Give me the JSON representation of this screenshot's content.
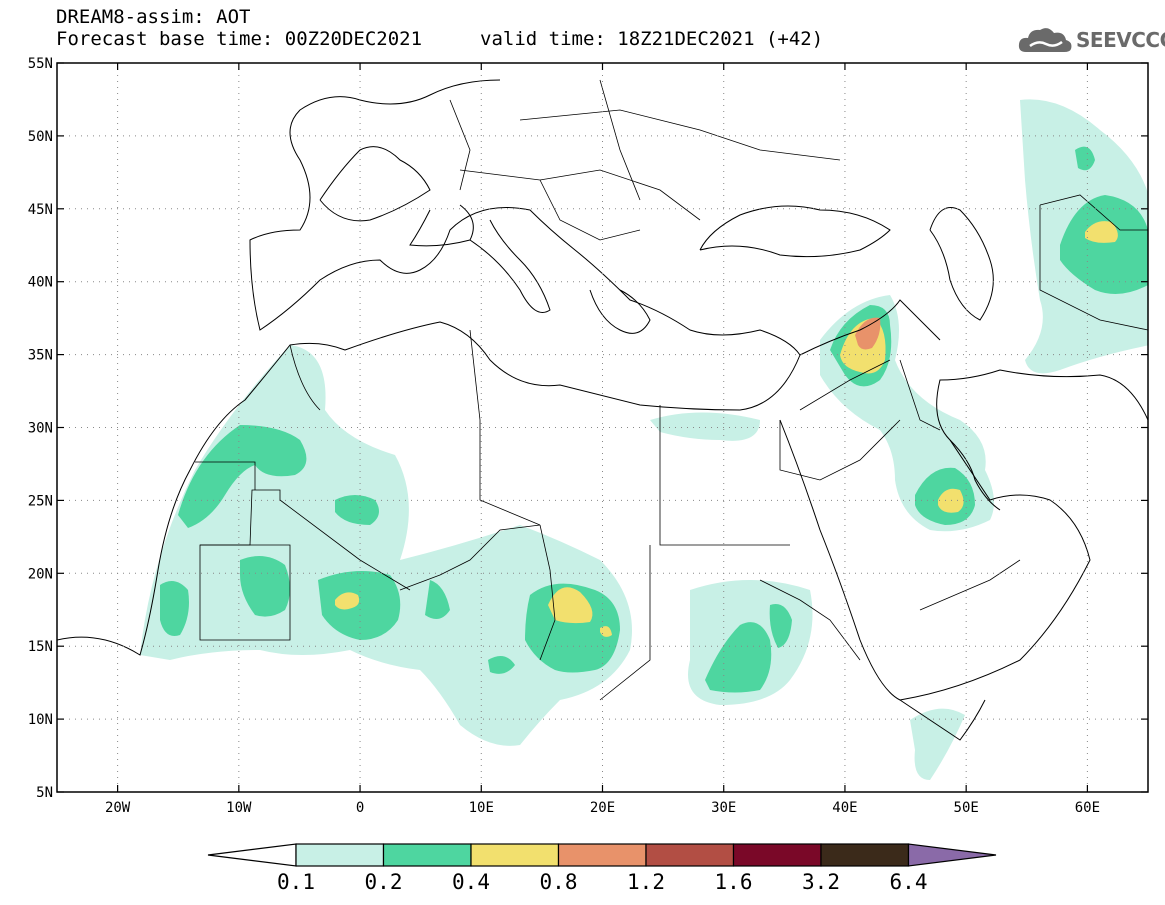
{
  "header": {
    "title_line1": "DREAM8-assim: AOT",
    "title_line2": "Forecast base time: 00Z20DEC2021",
    "title_line2b": "valid time: 18Z21DEC2021 (+42)"
  },
  "logo": {
    "text": "SEEVCCC",
    "icon": "cloud-icon"
  },
  "map": {
    "region": "North Africa, Middle East and Europe",
    "lon_range": [
      -25,
      65
    ],
    "lat_range": [
      5,
      55
    ],
    "lat_labels": [
      "55N",
      "50N",
      "45N",
      "40N",
      "35N",
      "30N",
      "25N",
      "20N",
      "15N",
      "10N",
      "5N"
    ],
    "lon_labels": [
      "20W",
      "10W",
      "0",
      "10E",
      "20E",
      "30E",
      "40E",
      "50E",
      "60E"
    ]
  },
  "colorbar": {
    "labels": [
      "0.1",
      "0.2",
      "0.4",
      "0.8",
      "1.2",
      "1.6",
      "3.2",
      "6.4"
    ],
    "colors": [
      "#c8f0e6",
      "#4ed6a0",
      "#f2e06e",
      "#e8926a",
      "#b24e44",
      "#7a0828",
      "#3b2a1a",
      "#8a6aa8"
    ]
  }
}
